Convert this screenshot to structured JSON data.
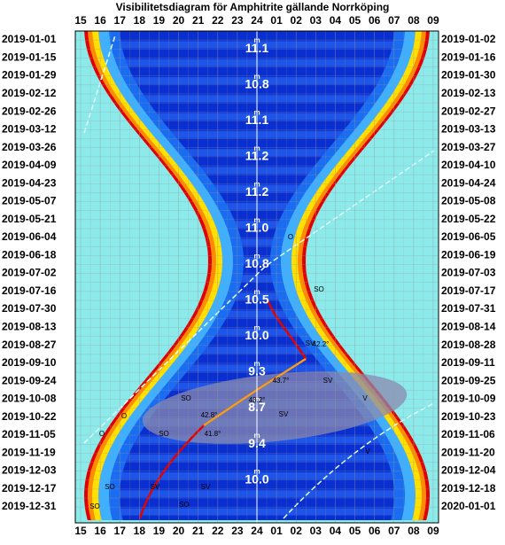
{
  "title": "Visibilitetsdiagram för Amphitrite gällande Norrköping",
  "hours": [
    "15",
    "16",
    "17",
    "18",
    "19",
    "20",
    "21",
    "22",
    "23",
    "24",
    "01",
    "02",
    "03",
    "04",
    "05",
    "06",
    "07",
    "08",
    "09"
  ],
  "dates_left": [
    "2019-01-01",
    "2019-01-15",
    "2019-01-29",
    "2019-02-12",
    "2019-02-26",
    "2019-03-12",
    "2019-03-26",
    "2019-04-09",
    "2019-04-23",
    "2019-05-07",
    "2019-05-21",
    "2019-06-04",
    "2019-06-18",
    "2019-07-02",
    "2019-07-16",
    "2019-07-30",
    "2019-08-13",
    "2019-08-27",
    "2019-09-10",
    "2019-09-24",
    "2019-10-08",
    "2019-10-22",
    "2019-11-05",
    "2019-11-19",
    "2019-12-03",
    "2019-12-17",
    "2019-12-31"
  ],
  "dates_right": [
    "2019-01-02",
    "2019-01-16",
    "2019-01-30",
    "2019-02-13",
    "2019-02-27",
    "2019-03-13",
    "2019-03-27",
    "2019-04-10",
    "2019-04-24",
    "2019-05-08",
    "2019-05-22",
    "2019-06-05",
    "2019-06-19",
    "2019-07-03",
    "2019-07-17",
    "2019-07-31",
    "2019-08-14",
    "2019-08-28",
    "2019-09-11",
    "2019-09-25",
    "2019-10-09",
    "2019-10-23",
    "2019-11-06",
    "2019-11-20",
    "2019-12-04",
    "2019-12-18",
    "2020-01-01"
  ],
  "magnitudes": [
    "11.1",
    "10.8",
    "11.1",
    "11.2",
    "11.2",
    "11.0",
    "10.8",
    "10.5",
    "10.0",
    "9.3",
    "8.7",
    "9.4",
    "10.0"
  ],
  "magnitude_unit": "m",
  "elevations": [
    "42.2°",
    "43.7°",
    "43.2°",
    "42.8°",
    "41.8°"
  ],
  "directions": [
    "O",
    "SO",
    "SV",
    "SO",
    "SV",
    "V",
    "O",
    "SO",
    "SV",
    "O",
    "SO",
    "SV",
    "V",
    "SO",
    "SO",
    "SV"
  ]
}
